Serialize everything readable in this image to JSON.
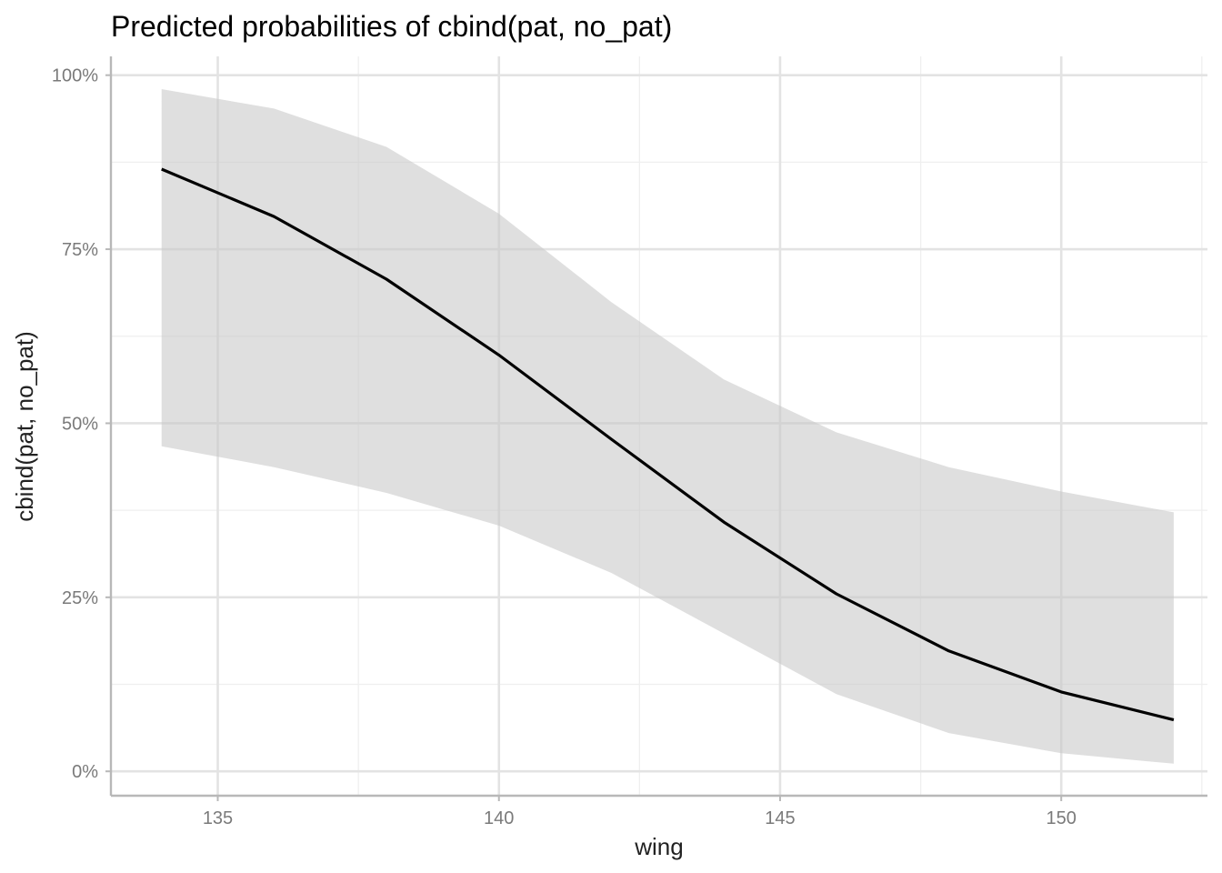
{
  "chart_data": {
    "type": "line",
    "title": "Predicted probabilities of cbind(pat, no_pat)",
    "xlabel": "wing",
    "ylabel": "cbind(pat, no_pat)",
    "x": [
      134,
      136,
      138,
      140,
      142,
      144,
      146,
      148,
      150,
      152
    ],
    "series": [
      {
        "values": [
          0.865,
          0.797,
          0.707,
          0.598,
          0.477,
          0.358,
          0.255,
          0.173,
          0.114,
          0.074
        ],
        "ci_lower": [
          0.467,
          0.437,
          0.4,
          0.353,
          0.285,
          0.198,
          0.111,
          0.055,
          0.026,
          0.011
        ],
        "ci_upper": [
          0.98,
          0.952,
          0.897,
          0.801,
          0.674,
          0.563,
          0.487,
          0.437,
          0.402,
          0.372
        ]
      }
    ],
    "xlim": [
      133.1,
      152.6
    ],
    "ylim": [
      -0.035,
      1.027
    ],
    "x_ticks": [
      135,
      140,
      145,
      150
    ],
    "x_tick_labels": [
      "135",
      "140",
      "145",
      "150"
    ],
    "y_ticks": [
      0,
      0.25,
      0.5,
      0.75,
      1.0
    ],
    "y_tick_labels": [
      "0%",
      "25%",
      "50%",
      "75%",
      "100%"
    ],
    "grid": true,
    "colors": {
      "line": "#000000",
      "ribbon": "#c8c8c8",
      "grid": "#e3e3e3"
    }
  }
}
